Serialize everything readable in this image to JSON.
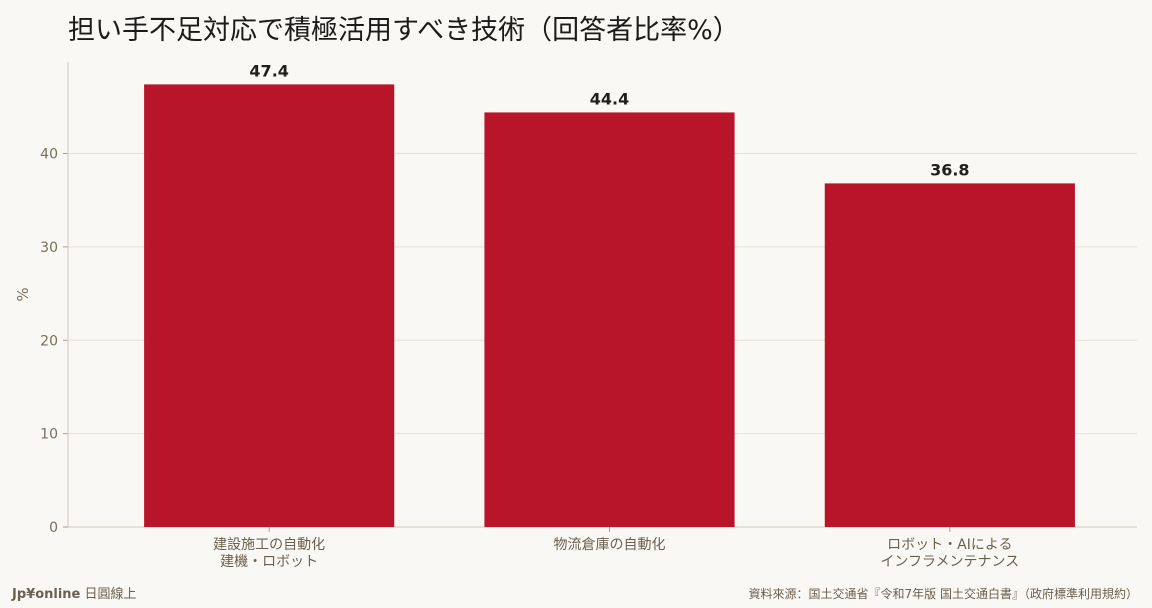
{
  "chart_data": {
    "type": "bar",
    "title": "担い手不足対応で積極活用すべき技術（回答者比率%）",
    "ylabel": "%",
    "xlabel": "",
    "categories": [
      [
        "建設施工の自動化",
        "建機・ロボット"
      ],
      [
        "物流倉庫の自動化"
      ],
      [
        "ロボット・AIによる",
        "インフラメンテナンス"
      ]
    ],
    "values": [
      47.4,
      44.4,
      36.8
    ],
    "value_labels": [
      "47.4",
      "44.4",
      "36.8"
    ],
    "yticks": [
      0,
      10,
      20,
      30,
      40
    ],
    "ylim": [
      0,
      49.8
    ],
    "grid": true,
    "bar_color": "#b8152b"
  },
  "footer": {
    "brand_bold": "Jp¥online",
    "brand_rest": " 日圓線上",
    "source": "資料來源：国土交通省『令和7年版 国土交通白書』（政府標準利用規約）"
  }
}
